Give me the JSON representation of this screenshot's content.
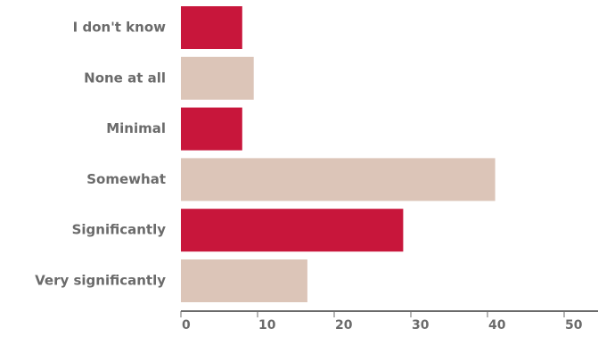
{
  "chart_data": {
    "type": "bar",
    "orientation": "horizontal",
    "categories": [
      "I don't know",
      "None at all",
      "Minimal",
      "Somewhat",
      "Significantly",
      "Very significantly"
    ],
    "values": [
      8,
      9.5,
      8,
      41,
      29,
      16.5
    ],
    "bar_colors": [
      "#c8163b",
      "#dcc5b8",
      "#c8163b",
      "#dcc5b8",
      "#c8163b",
      "#dcc5b8"
    ],
    "xticks": [
      0,
      10,
      20,
      30,
      40,
      50
    ],
    "xlim": [
      0,
      50
    ],
    "title": "",
    "xlabel": "",
    "ylabel": "",
    "grid": false,
    "axis_color": "#6b6b6b",
    "text_color": "#6b6b6b"
  }
}
